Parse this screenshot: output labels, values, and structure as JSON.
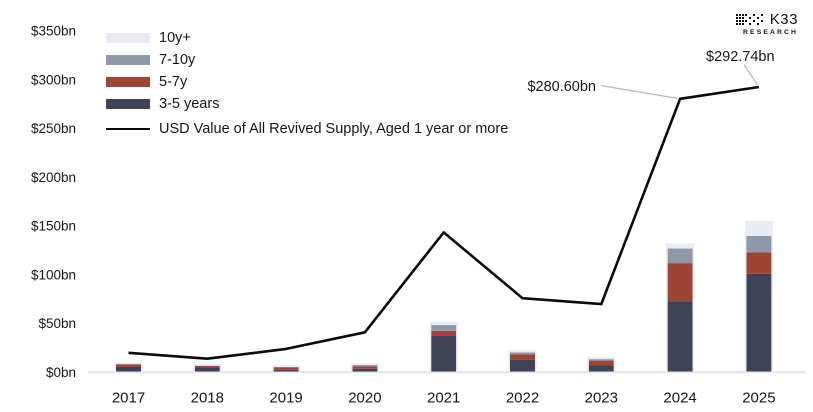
{
  "branding": {
    "name": "K33",
    "sub": "RESEARCH"
  },
  "colors": {
    "text": "#16161d",
    "axis_line": "#e3e4e8",
    "bar_outline": "#e8ebf1",
    "leader_line": "#b8bbc0"
  },
  "chart_data": {
    "type": "bar",
    "subtype": "stacked-bar-with-line-overlay",
    "categories": [
      "2017",
      "2018",
      "2019",
      "2020",
      "2021",
      "2022",
      "2023",
      "2024",
      "2025"
    ],
    "stack_order_bottom_to_top": [
      "3-5 years",
      "5-7y",
      "7-10y",
      "10y+"
    ],
    "series": [
      {
        "name": "3-5 years",
        "color": "#3e4356",
        "values": [
          5.5,
          5,
          2.5,
          3.5,
          38,
          13,
          7,
          73,
          101
        ]
      },
      {
        "name": "5-7y",
        "color": "#9e4437",
        "values": [
          2.5,
          1.5,
          2.5,
          2.5,
          4.5,
          5.5,
          5,
          39,
          22
        ]
      },
      {
        "name": "7-10y",
        "color": "#8e99a8",
        "values": [
          0.4,
          0.3,
          0.5,
          1.5,
          6,
          2,
          1.5,
          15,
          17
        ]
      },
      {
        "name": "10y+",
        "color": "#e9ecf2",
        "values": [
          0.1,
          0.1,
          0.2,
          0.3,
          1.5,
          0.5,
          0.5,
          3.5,
          14
        ]
      }
    ],
    "line": {
      "name": "USD Value of All Revived Supply, Aged 1 year or more",
      "color": "#0b0b0b",
      "values": [
        20,
        14,
        24,
        41,
        143.5,
        76,
        70,
        280.6,
        292.74
      ]
    },
    "annotations": [
      {
        "target_year": "2024",
        "label": "$280.60bn"
      },
      {
        "target_year": "2025",
        "label": "$292.74bn"
      }
    ],
    "legend": [
      {
        "label": "10y+",
        "type": "swatch",
        "color": "#e9ecf2"
      },
      {
        "label": "7-10y",
        "type": "swatch",
        "color": "#8e99a8"
      },
      {
        "label": "5-7y",
        "type": "swatch",
        "color": "#9e4437"
      },
      {
        "label": "3-5 years",
        "type": "swatch",
        "color": "#3e4356"
      },
      {
        "label": "USD Value of All Revived Supply, Aged 1 year or more",
        "type": "line",
        "color": "#0b0b0b"
      }
    ],
    "legend_position": "top-left",
    "grid": false,
    "ylim": [
      0,
      350
    ],
    "ytick_step": 50,
    "yticks": [
      "$0bn",
      "$50bn",
      "$100bn",
      "$150bn",
      "$200bn",
      "$250bn",
      "$300bn",
      "$350bn"
    ],
    "xlabel": "",
    "ylabel": ""
  }
}
